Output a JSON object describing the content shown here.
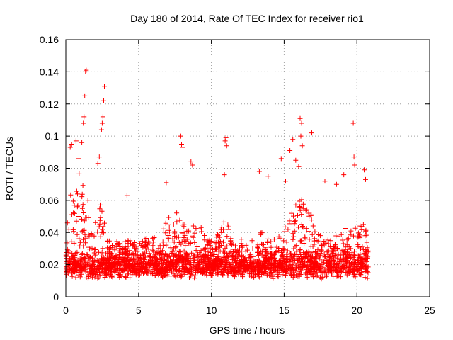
{
  "chart_data": {
    "type": "scatter",
    "title": "Day 180 of 2014, Rate Of TEC Index for receiver rio1",
    "xlabel": "GPS time / hours",
    "ylabel": "ROTI / TECUs",
    "xlim": [
      0,
      25
    ],
    "ylim": [
      0,
      0.16
    ],
    "xticks": [
      0,
      5,
      10,
      15,
      20,
      25
    ],
    "yticks": [
      0,
      0.02,
      0.04,
      0.06,
      0.08,
      0.1,
      0.12,
      0.14,
      0.16
    ],
    "xtick_labels": [
      "0",
      "5",
      "10",
      "15",
      "20",
      "25"
    ],
    "ytick_labels": [
      "0",
      "0.02",
      "0.04",
      "0.06",
      "0.08",
      "0.1",
      "0.12",
      "0.14",
      "0.16"
    ],
    "grid": true,
    "marker": "plus",
    "colors": {
      "points": "#ff0000",
      "grid": "#a0a0a0",
      "axes": "#000000"
    },
    "time_range_hours": [
      0,
      20.8
    ],
    "density_profile": {
      "baseline_mean": 0.015,
      "baseline_spread": 0.007,
      "envelope": [
        [
          0.0,
          0.045
        ],
        [
          0.3,
          0.07
        ],
        [
          0.5,
          0.06
        ],
        [
          1.0,
          0.08
        ],
        [
          1.3,
          0.065
        ],
        [
          2.0,
          0.055
        ],
        [
          2.5,
          0.06
        ],
        [
          3.0,
          0.035
        ],
        [
          4.0,
          0.035
        ],
        [
          5.0,
          0.035
        ],
        [
          6.0,
          0.04
        ],
        [
          7.0,
          0.05
        ],
        [
          7.5,
          0.055
        ],
        [
          8.0,
          0.05
        ],
        [
          8.5,
          0.045
        ],
        [
          9.0,
          0.05
        ],
        [
          9.5,
          0.04
        ],
        [
          10.0,
          0.035
        ],
        [
          10.5,
          0.04
        ],
        [
          11.0,
          0.05
        ],
        [
          11.5,
          0.035
        ],
        [
          12.0,
          0.025
        ],
        [
          12.5,
          0.02
        ],
        [
          13.0,
          0.022
        ],
        [
          13.5,
          0.045
        ],
        [
          14.0,
          0.04
        ],
        [
          14.5,
          0.035
        ],
        [
          15.0,
          0.045
        ],
        [
          15.5,
          0.055
        ],
        [
          16.0,
          0.065
        ],
        [
          16.5,
          0.055
        ],
        [
          17.0,
          0.05
        ],
        [
          17.5,
          0.04
        ],
        [
          18.0,
          0.035
        ],
        [
          18.5,
          0.04
        ],
        [
          19.0,
          0.045
        ],
        [
          19.5,
          0.04
        ],
        [
          20.0,
          0.045
        ],
        [
          20.5,
          0.05
        ],
        [
          20.8,
          0.035
        ]
      ]
    },
    "outliers": [
      [
        1.4,
        0.141
      ],
      [
        1.35,
        0.14
      ],
      [
        1.3,
        0.125
      ],
      [
        1.25,
        0.112
      ],
      [
        1.2,
        0.108
      ],
      [
        2.65,
        0.131
      ],
      [
        2.6,
        0.122
      ],
      [
        2.55,
        0.112
      ],
      [
        2.5,
        0.108
      ],
      [
        2.45,
        0.104
      ],
      [
        0.4,
        0.095
      ],
      [
        0.3,
        0.093
      ],
      [
        0.7,
        0.097
      ],
      [
        0.9,
        0.086
      ],
      [
        1.1,
        0.096
      ],
      [
        2.3,
        0.087
      ],
      [
        2.2,
        0.083
      ],
      [
        4.2,
        0.063
      ],
      [
        7.9,
        0.1
      ],
      [
        7.95,
        0.095
      ],
      [
        8.05,
        0.093
      ],
      [
        8.6,
        0.084
      ],
      [
        8.7,
        0.082
      ],
      [
        11.0,
        0.099
      ],
      [
        10.95,
        0.097
      ],
      [
        11.05,
        0.094
      ],
      [
        10.9,
        0.076
      ],
      [
        6.9,
        0.071
      ],
      [
        13.3,
        0.078
      ],
      [
        13.9,
        0.075
      ],
      [
        14.8,
        0.086
      ],
      [
        15.4,
        0.091
      ],
      [
        15.6,
        0.098
      ],
      [
        15.1,
        0.072
      ],
      [
        15.8,
        0.085
      ],
      [
        16.1,
        0.111
      ],
      [
        16.2,
        0.108
      ],
      [
        16.15,
        0.1
      ],
      [
        16.25,
        0.094
      ],
      [
        16.0,
        0.081
      ],
      [
        16.9,
        0.102
      ],
      [
        17.8,
        0.072
      ],
      [
        19.1,
        0.076
      ],
      [
        19.75,
        0.108
      ],
      [
        19.8,
        0.087
      ],
      [
        19.85,
        0.082
      ],
      [
        20.5,
        0.079
      ],
      [
        20.6,
        0.073
      ],
      [
        18.6,
        0.07
      ],
      [
        12.4,
        0.032
      ]
    ]
  }
}
